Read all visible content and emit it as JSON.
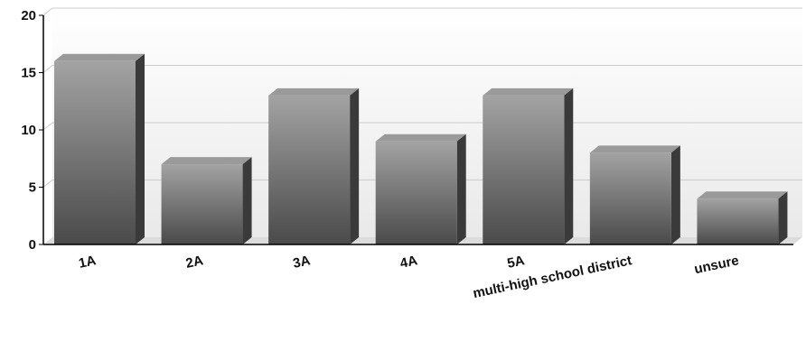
{
  "chart_data": {
    "type": "bar",
    "categories": [
      "1A",
      "2A",
      "3A",
      "4A",
      "5A",
      "multi-high school district",
      "unsure"
    ],
    "values": [
      16,
      7,
      13,
      9,
      13,
      8,
      4
    ],
    "ylim": [
      0,
      20
    ],
    "yticks": [
      0,
      5,
      10,
      15,
      20
    ],
    "grid": true,
    "legend": "none",
    "bar_style": "3d",
    "colors": {
      "bar_front_top": "#a3a3a3",
      "bar_front_bottom": "#4a4a4a",
      "bar_side": "#3a3a3a",
      "bar_top": "#9a9a9a",
      "grid": "#cccccc",
      "axis": "#000000",
      "plot_bg_top": "#ffffff",
      "plot_bg_bottom": "#e9e9e9"
    }
  }
}
